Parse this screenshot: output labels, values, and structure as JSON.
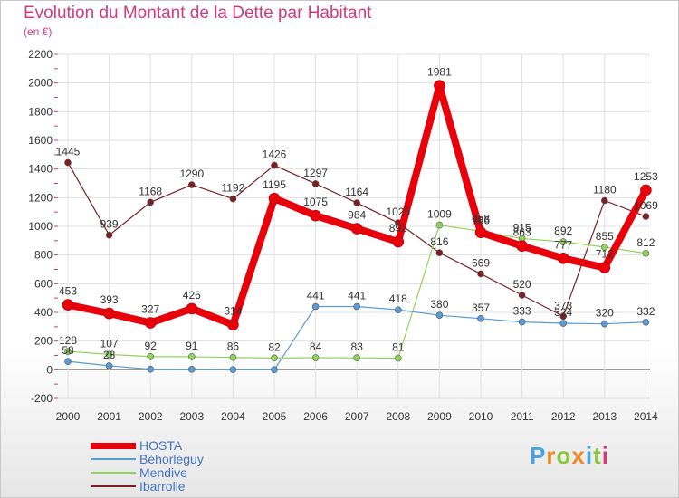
{
  "header": {
    "title": "Evolution du Montant de la Dette par Habitant",
    "unit": "(en €)"
  },
  "logo": {
    "text": "Proxiti",
    "letters": [
      "P",
      "r",
      "o",
      "x",
      "i",
      "t",
      "i"
    ]
  },
  "colors": {
    "title": "#d63a7a",
    "legend_text": "#4472c4",
    "axis_text": "#333333",
    "grid": "#e0e0e0",
    "zero_line": "#9a9a9a"
  },
  "chart_data": {
    "type": "line",
    "title": "Evolution du Montant de la Dette par Habitant",
    "ylabel": "(en €)",
    "x": [
      "2000",
      "2001",
      "2002",
      "2003",
      "2004",
      "2005",
      "2006",
      "2007",
      "2008",
      "2009",
      "2010",
      "2011",
      "2012",
      "2013",
      "2014"
    ],
    "ylim": [
      -200,
      2200
    ],
    "yticks": [
      -200,
      0,
      200,
      400,
      600,
      800,
      1000,
      1200,
      1400,
      1600,
      1800,
      2000,
      2200
    ],
    "grid": true,
    "legend_position": "bottom-left",
    "series": [
      {
        "name": "HOSTA",
        "color": "#e8000b",
        "width": 8,
        "values": [
          453,
          393,
          327,
          426,
          314,
          1195,
          1075,
          984,
          892,
          1981,
          958,
          863,
          777,
          712,
          1253
        ],
        "labels": [
          "453",
          "393",
          "327",
          "426",
          "314",
          "1195",
          "1075",
          "984",
          "892",
          "1981",
          "958",
          "863",
          "777",
          "712",
          "1253"
        ]
      },
      {
        "name": "Béhorléguy",
        "color": "#5b9bd5",
        "width": 1.2,
        "values": [
          58,
          28,
          4,
          3,
          1,
          1,
          441,
          441,
          418,
          380,
          357,
          333,
          324,
          320,
          332
        ],
        "labels": [
          "58",
          "28",
          "",
          "",
          "",
          "",
          "441",
          "441",
          "418",
          "380",
          "357",
          "333",
          "324",
          "320",
          "332"
        ]
      },
      {
        "name": "Mendive",
        "color": "#8fd55a",
        "width": 1.2,
        "values": [
          128,
          107,
          92,
          91,
          86,
          82,
          84,
          83,
          81,
          1009,
          966,
          915,
          892,
          855,
          812
        ],
        "labels": [
          "128",
          "107",
          "92",
          "91",
          "86",
          "82",
          "84",
          "83",
          "81",
          "1009",
          "966",
          "915",
          "892",
          "855",
          "812"
        ]
      },
      {
        "name": "Ibarrolle",
        "color": "#7a2020",
        "width": 1.2,
        "values": [
          1445,
          939,
          1168,
          1290,
          1192,
          1426,
          1297,
          1164,
          1025,
          816,
          669,
          520,
          373,
          1180,
          1069
        ],
        "labels": [
          "1445",
          "939",
          "1168",
          "1290",
          "1192",
          "1426",
          "1297",
          "1164",
          "1025",
          "816",
          "669",
          "520",
          "373",
          "1180",
          "1069"
        ]
      }
    ]
  }
}
